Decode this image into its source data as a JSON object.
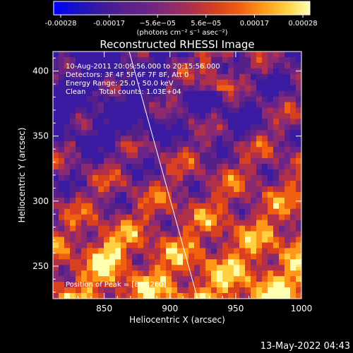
{
  "colors": {
    "background": "#000000",
    "text": "#ffffff",
    "limb_line": "#ffffff",
    "colormap": [
      "#0000ff",
      "#1a10c8",
      "#3a1aa0",
      "#55208a",
      "#6a2488",
      "#8a2a70",
      "#b0304a",
      "#d84020",
      "#f06010",
      "#ff9818",
      "#ffd040",
      "#ffffb0"
    ]
  },
  "colorbar": {
    "tick_labels": [
      "-0.00028",
      "-0.00017",
      "−5.6e−05",
      "5.6e−05",
      "0.00017",
      "0.00028"
    ],
    "unit_label": "(photons cm⁻² s⁻¹ asec⁻²)"
  },
  "chart_data": {
    "type": "heatmap",
    "title": "Reconstructed RHESSI Image",
    "xlabel": "Heliocentric X (arcsec)",
    "ylabel": "Heliocentric Y (arcsec)",
    "xlim": [
      811,
      1000
    ],
    "ylim": [
      225,
      415
    ],
    "x_ticks": [
      850,
      900,
      950,
      1000
    ],
    "y_ticks": [
      250,
      300,
      350,
      400
    ],
    "x_tick_labels": [
      "850",
      "900",
      "950",
      "1000"
    ],
    "y_tick_labels": [
      "250",
      "300",
      "350",
      "400"
    ],
    "clim": [
      -0.00028,
      0.00028
    ],
    "colormap": "blue-purple-red-yellow",
    "limb_line": {
      "x": [
        869,
        921
      ],
      "y": [
        415,
        225
      ]
    },
    "annotations": [
      "10-Aug-2011 20:09:56.000 to 20:15:56.000",
      "Detectors: 3F 4F 5F 6F 7F 8F, Att 0",
      "Energy Range: 25.0 - 50.0 keV",
      "Clean      Total counts: 1.03E+04"
    ],
    "peak_label": "Position of Peak = [847,260]",
    "peak_position": [
      847,
      260
    ]
  },
  "footer": {
    "timestamp": "13-May-2022 04:43"
  }
}
